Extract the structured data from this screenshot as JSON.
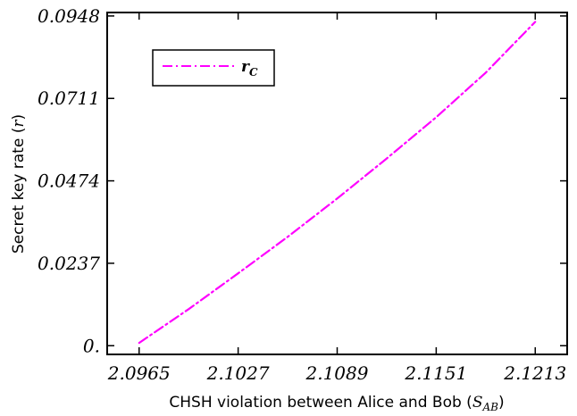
{
  "chart_data": {
    "type": "line",
    "xlabel": "CHSH violation between Alice and Bob",
    "xlabel_symbol": "S",
    "xlabel_symbol_sub": "AB",
    "ylabel": "Secret key rate",
    "ylabel_symbol": "r",
    "xlim": [
      2.0945,
      2.1233
    ],
    "ylim": [
      -0.0025,
      0.0958
    ],
    "x_ticks": [
      2.0965,
      2.1027,
      2.1089,
      2.1151,
      2.1213
    ],
    "x_tick_labels": [
      "2.0965",
      "2.1027",
      "2.1089",
      "2.1151",
      "2.1213"
    ],
    "y_ticks": [
      0,
      0.0237,
      0.0474,
      0.0711,
      0.0948
    ],
    "y_tick_labels": [
      "0.",
      "0.0237",
      "0.0474",
      "0.0711",
      "0.0948"
    ],
    "grid": false,
    "legend_placement": "top-left",
    "series": [
      {
        "name": "r",
        "name_sub": "C",
        "color": "#ff00ff",
        "dash": "dash-dot",
        "x": [
          2.0965,
          2.0996,
          2.1027,
          2.1058,
          2.1089,
          2.112,
          2.1151,
          2.1182,
          2.1213
        ],
        "y": [
          0.0008,
          0.0105,
          0.0208,
          0.0313,
          0.0423,
          0.0538,
          0.0657,
          0.0785,
          0.0931
        ]
      }
    ]
  }
}
